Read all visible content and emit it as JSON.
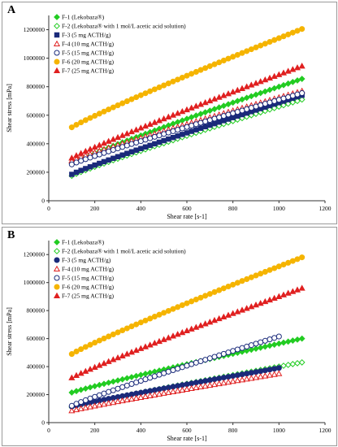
{
  "chart_data": [
    {
      "panel_label": "A",
      "type": "scatter",
      "xlabel": "Shear rate [s-1]",
      "ylabel": "Shear stress [mPa]",
      "xlim": [
        0,
        1200
      ],
      "ylim": [
        0,
        1300000
      ],
      "xticks": [
        0,
        200,
        400,
        600,
        800,
        1000,
        1200
      ],
      "yticks": [
        0,
        200000,
        400000,
        600000,
        800000,
        1000000,
        1200000
      ],
      "grid": false,
      "legend_position": "top-left",
      "series": [
        {
          "name": "F-1 (Lekobaza®)",
          "marker": "diamond-filled",
          "color": "#22cc22",
          "x_start": 100,
          "x_end": 1100,
          "y_start": 265000,
          "y_end": 855000
        },
        {
          "name": "F-2 (Lekobaza® with 1 mol/L acetic acid solution)",
          "marker": "diamond-open",
          "color": "#22cc22",
          "x_start": 100,
          "x_end": 1100,
          "y_start": 175000,
          "y_end": 710000
        },
        {
          "name": "F-3 (5 mg ACTH/g)",
          "marker": "square-filled",
          "color": "#1a2a7a",
          "x_start": 100,
          "x_end": 1100,
          "y_start": 185000,
          "y_end": 740000
        },
        {
          "name": "F-4 (10 mg ACTH/g)",
          "marker": "triangle-open",
          "color": "#e02020",
          "x_start": 100,
          "x_end": 1100,
          "y_start": 280000,
          "y_end": 770000
        },
        {
          "name": "F-5 (15 mg ACTH/g)",
          "marker": "circle-open",
          "color": "#1a2a7a",
          "x_start": 100,
          "x_end": 1100,
          "y_start": 255000,
          "y_end": 755000
        },
        {
          "name": "F-6 (20 mg ACTH/g)",
          "marker": "circle-filled",
          "color": "#f5b400",
          "x_start": 100,
          "x_end": 1100,
          "y_start": 515000,
          "y_end": 1205000
        },
        {
          "name": "F-7 (25 mg ACTH/g)",
          "marker": "triangle-filled",
          "color": "#e02020",
          "x_start": 100,
          "x_end": 1100,
          "y_start": 300000,
          "y_end": 945000
        }
      ]
    },
    {
      "panel_label": "B",
      "type": "scatter",
      "xlabel": "Shear rate [s-1]",
      "ylabel": "Shear stress [mPa]",
      "xlim": [
        0,
        1200
      ],
      "ylim": [
        0,
        1300000
      ],
      "xticks": [
        0,
        200,
        400,
        600,
        800,
        1000,
        1200
      ],
      "yticks": [
        0,
        200000,
        400000,
        600000,
        800000,
        1000000,
        1200000
      ],
      "grid": false,
      "legend_position": "top-left",
      "series": [
        {
          "name": "F-1 (Lekobaza®)",
          "marker": "diamond-filled",
          "color": "#22cc22",
          "x_start": 100,
          "x_end": 1100,
          "y_start": 215000,
          "y_end": 600000
        },
        {
          "name": "F-2 (Lekobaza® with 1 mol/L acetic acid solution)",
          "marker": "diamond-open",
          "color": "#22cc22",
          "x_start": 100,
          "x_end": 1100,
          "y_start": 110000,
          "y_end": 430000
        },
        {
          "name": "F-3 (5 mg ACTH/g)",
          "marker": "circle-filled",
          "color": "#1a2a7a",
          "x_start": 100,
          "x_end": 1000,
          "y_start": 115000,
          "y_end": 390000
        },
        {
          "name": "F-4 (10 mg ACTH/g)",
          "marker": "triangle-open",
          "color": "#e02020",
          "x_start": 100,
          "x_end": 1000,
          "y_start": 85000,
          "y_end": 350000
        },
        {
          "name": "F-5 (15 mg ACTH/g)",
          "marker": "circle-open",
          "color": "#1a2a7a",
          "x_start": 100,
          "x_end": 1000,
          "y_start": 120000,
          "y_end": 615000
        },
        {
          "name": "F-6 (20 mg ACTH/g)",
          "marker": "circle-filled",
          "color": "#f5b400",
          "x_start": 100,
          "x_end": 1100,
          "y_start": 490000,
          "y_end": 1180000
        },
        {
          "name": "F-7 (25 mg ACTH/g)",
          "marker": "triangle-filled",
          "color": "#e02020",
          "x_start": 100,
          "x_end": 1100,
          "y_start": 320000,
          "y_end": 960000
        }
      ]
    }
  ]
}
